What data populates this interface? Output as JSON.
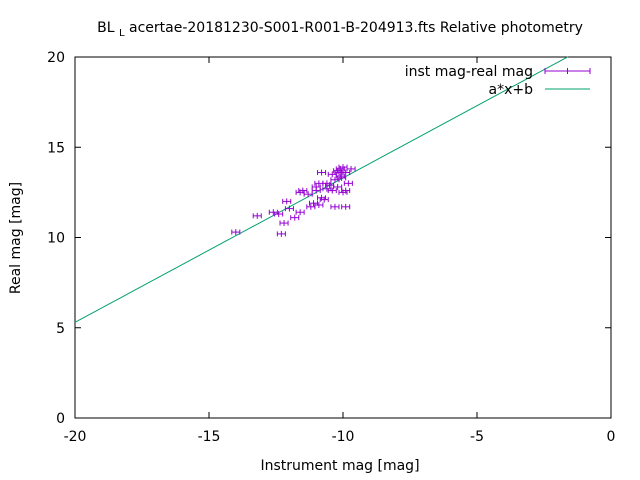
{
  "chart_data": {
    "type": "scatter",
    "title_prefix": "BL",
    "title_sub": "L",
    "title_rest": "acertae-20181230-S001-R001-B-204913.fts Relative photometry",
    "xlabel": "Instrument mag [mag]",
    "ylabel": "Real mag [mag]",
    "xlim": [
      -20,
      0
    ],
    "ylim": [
      0,
      20
    ],
    "xticks": [
      -20,
      -15,
      -10,
      -5,
      0
    ],
    "yticks": [
      0,
      5,
      10,
      15,
      20
    ],
    "xtick_labels": [
      "-20",
      "-15",
      "-10",
      "-5",
      "0"
    ],
    "ytick_labels": [
      "0",
      "5",
      "10",
      "15",
      "20"
    ],
    "grid": false,
    "legend_position": "top-right",
    "series": [
      {
        "name": "inst mag-real mag",
        "kind": "points-with-xerror",
        "color": "#9400d3",
        "xerr": 0.15,
        "points": [
          [
            -14.0,
            10.3
          ],
          [
            -13.2,
            11.2
          ],
          [
            -12.6,
            11.4
          ],
          [
            -12.4,
            11.3
          ],
          [
            -12.3,
            10.2
          ],
          [
            -12.2,
            10.8
          ],
          [
            -12.1,
            12.0
          ],
          [
            -12.0,
            11.6
          ],
          [
            -11.8,
            11.1
          ],
          [
            -11.6,
            11.4
          ],
          [
            -11.6,
            12.5
          ],
          [
            -11.5,
            12.6
          ],
          [
            -11.2,
            11.7
          ],
          [
            -11.1,
            11.9
          ],
          [
            -11.0,
            12.8
          ],
          [
            -10.9,
            13.0
          ],
          [
            -10.8,
            12.2
          ],
          [
            -10.8,
            13.6
          ],
          [
            -10.7,
            12.1
          ],
          [
            -10.6,
            13.0
          ],
          [
            -10.5,
            12.9
          ],
          [
            -10.4,
            12.6
          ],
          [
            -10.4,
            13.5
          ],
          [
            -10.3,
            11.7
          ],
          [
            -10.3,
            13.2
          ],
          [
            -10.2,
            13.7
          ],
          [
            -10.2,
            12.8
          ],
          [
            -10.1,
            13.4
          ],
          [
            -10.1,
            13.8
          ],
          [
            -10.0,
            13.9
          ],
          [
            -10.0,
            12.5
          ],
          [
            -9.9,
            13.6
          ],
          [
            -9.9,
            12.6
          ],
          [
            -9.9,
            11.7
          ],
          [
            -9.8,
            13.0
          ],
          [
            -9.7,
            13.8
          ],
          [
            -10.05,
            13.3
          ],
          [
            -10.15,
            13.6
          ],
          [
            -10.6,
            12.7
          ],
          [
            -11.0,
            12.6
          ],
          [
            -11.3,
            12.4
          ],
          [
            -10.9,
            11.8
          ]
        ]
      },
      {
        "name": "a*x+b",
        "kind": "line",
        "color": "#00a070",
        "slope": 0.8,
        "intercept": 21.3,
        "x_range": [
          -20,
          -1.6
        ]
      }
    ]
  }
}
